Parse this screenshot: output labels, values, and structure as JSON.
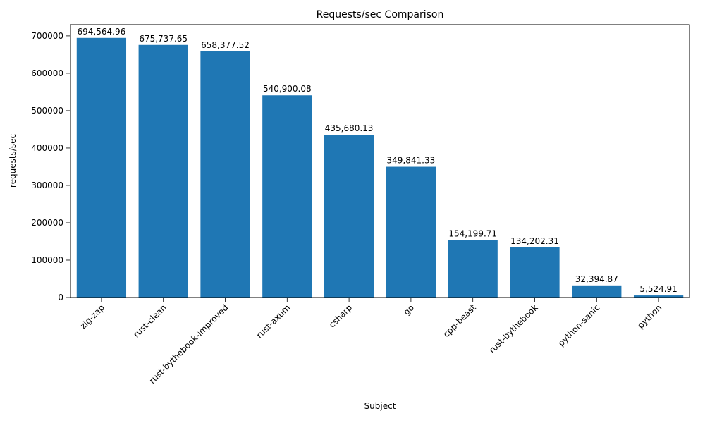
{
  "chart_data": {
    "type": "bar",
    "title": "Requests/sec Comparison",
    "xlabel": "Subject",
    "ylabel": "requests/sec",
    "categories": [
      "zig-zap",
      "rust-clean",
      "rust-bythebook-improved",
      "rust-axum",
      "csharp",
      "go",
      "cpp-beast",
      "rust-bythebook",
      "python-sanic",
      "python"
    ],
    "values": [
      694564.96,
      675737.65,
      658377.52,
      540900.08,
      435680.13,
      349841.33,
      154199.71,
      134202.31,
      32394.87,
      5524.91
    ],
    "value_labels": [
      "694,564.96",
      "675,737.65",
      "658,377.52",
      "540,900.08",
      "435,680.13",
      "349,841.33",
      "154,199.71",
      "134,202.31",
      "32,394.87",
      "5,524.91"
    ],
    "yticks": [
      0,
      100000,
      200000,
      300000,
      400000,
      500000,
      600000,
      700000
    ],
    "ylim": [
      0,
      730000
    ],
    "bar_color": "#1f77b4",
    "axis_color": "#000000",
    "background": "#ffffff",
    "grid": false,
    "legend": false,
    "x_tick_rotation_deg": 45
  }
}
